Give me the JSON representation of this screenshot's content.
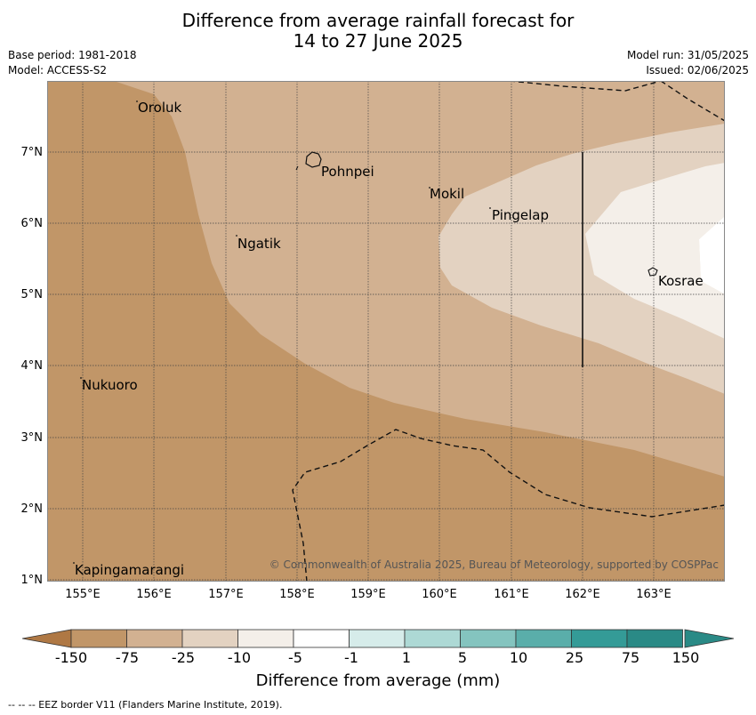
{
  "title_line1": "Difference from average rainfall forecast for",
  "title_line2": "14 to 27 June 2025",
  "meta": {
    "base_period": "Base period: 1981-2018",
    "model": "Model: ACCESS-S2",
    "model_run": "Model run: 31/05/2025",
    "issued": "Issued: 02/06/2025"
  },
  "latitudes": [
    "7°N",
    "6°N",
    "5°N",
    "4°N",
    "3°N",
    "2°N",
    "1°N"
  ],
  "longitudes": [
    "155°E",
    "156°E",
    "157°E",
    "158°E",
    "159°E",
    "160°E",
    "161°E",
    "162°E",
    "163°E"
  ],
  "places": {
    "oroluk": "Oroluk",
    "pohnpei": "Pohnpei",
    "mokil": "Mokil",
    "pingelap": "Pingelap",
    "ngatik": "Ngatik",
    "kosrae": "Kosrae",
    "nukuoro": "Nukuoro",
    "kapingamarangi": "Kapingamarangi"
  },
  "copyright": "© Commonwealth of Australia 2025, Bureau of Meteorology, supported by COSPPac",
  "colorbar": {
    "ticks": [
      "-150",
      "-75",
      "-25",
      "-10",
      "-5",
      "-1",
      "1",
      "5",
      "10",
      "25",
      "75",
      "150"
    ],
    "colors": [
      "#af7844",
      "#c19668",
      "#d2b191",
      "#e3d2c1",
      "#f4efe9",
      "#ffffff",
      "#d6ecea",
      "#add9d5",
      "#84c4bf",
      "#5aaeaa",
      "#349b97",
      "#2a8a86"
    ],
    "title": "Difference from average (mm)"
  },
  "footnote": "--  --  -- EEZ border V11 (Flanders Marine Institute, 2019)."
}
